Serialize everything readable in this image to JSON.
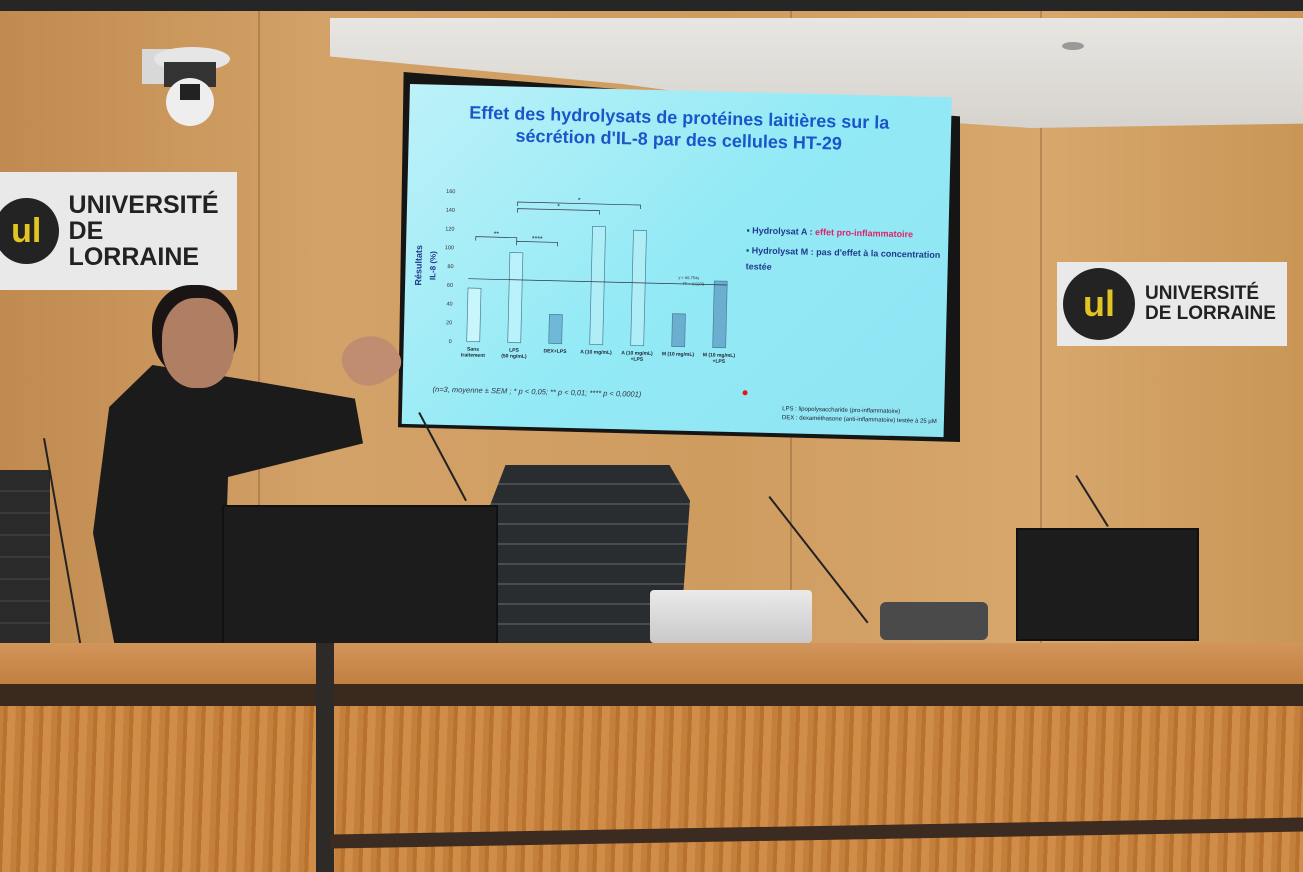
{
  "logos": {
    "brand_line1": "UNIVERSITÉ",
    "brand_line2": "DE LORRAINE",
    "mark": "ul"
  },
  "slide": {
    "title_line1": "Effet des hydrolysats de protéines laitières sur la",
    "title_line2": "sécrétion d'IL-8 par des cellules HT-29",
    "bullets": [
      {
        "prefix": "Hydrolysat A : ",
        "highlight": "effet pro-inflammatoire"
      },
      {
        "prefix": "Hydrolysat M :  pas d'effet à la concentration testée",
        "highlight": ""
      }
    ],
    "highlight_color": "#e0206a",
    "note": "(n=3, moyenne ± SEM ; * p < 0,05; ** p < 0,01; **** p < 0,0001)",
    "legend_line1": "LPS : lipopolysaccharide (pro-inflammatoire)",
    "legend_line2": "DEX : dexaméthasone (anti-inflammatoire) testée à 25 µM"
  },
  "chart_data": {
    "type": "bar",
    "ylabel_outer": "Résultats",
    "ylabel": "IL-8 (%)",
    "ylim": [
      0,
      160
    ],
    "yticks": [
      0,
      20,
      40,
      60,
      80,
      100,
      120,
      140,
      160
    ],
    "categories": [
      "Sans traitement",
      "LPS (50 ng/mL)",
      "DEX+LPS",
      "A (10 mg/mL)",
      "A (10 mg/mL) +LPS",
      "M (10 mg/mL)",
      "M (10 mg/mL) +LPS"
    ],
    "values": [
      57,
      96,
      31,
      126,
      123,
      35,
      71
    ],
    "trendline": {
      "value": 67,
      "equation": "y = 66,754e",
      "r2": "R² = 0,0378"
    },
    "significance": [
      {
        "from": 0,
        "to": 1,
        "label": "**"
      },
      {
        "from": 1,
        "to": 2,
        "label": "****"
      },
      {
        "from": 1,
        "to": 3,
        "label": "*"
      },
      {
        "from": 1,
        "to": 4,
        "label": "*"
      }
    ],
    "grid": false
  }
}
